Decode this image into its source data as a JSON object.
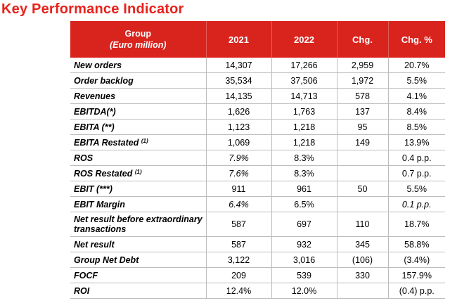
{
  "title": "Key Performance Indicator",
  "header": {
    "group": "Group",
    "unit": "(Euro million)",
    "col_2021": "2021",
    "col_2022": "2022",
    "col_chg": "Chg.",
    "col_chg_pct": "Chg. %"
  },
  "rows": [
    {
      "label": "New orders",
      "sup": "",
      "v2021": "14,307",
      "v2022": "17,266",
      "chg": "2,959",
      "pct": "20.7%"
    },
    {
      "label": "Order backlog",
      "sup": "",
      "v2021": "35,534",
      "v2022": "37,506",
      "chg": "1,972",
      "pct": "5.5%"
    },
    {
      "label": "Revenues",
      "sup": "",
      "v2021": "14,135",
      "v2022": "14,713",
      "chg": "578",
      "pct": "4.1%"
    },
    {
      "label": "EBITDA(*)",
      "sup": "",
      "v2021": "1,626",
      "v2022": "1,763",
      "chg": "137",
      "pct": "8.4%"
    },
    {
      "label": "EBITA (**)",
      "sup": "",
      "v2021": "1,123",
      "v2022": "1,218",
      "chg": "95",
      "pct": "8.5%"
    },
    {
      "label": "EBITA Restated",
      "sup": "(1)",
      "v2021": "1,069",
      "v2022": "1,218",
      "chg": "149",
      "pct": "13.9%"
    },
    {
      "label": "ROS",
      "sup": "",
      "v2021": "7.9%",
      "v2022": "8.3%",
      "chg": "",
      "pct": "0.4 p.p."
    },
    {
      "label": "ROS Restated",
      "sup": "(1)",
      "v2021": "7.6%",
      "v2022": "8.3%",
      "chg": "",
      "pct": "0.7 p.p."
    },
    {
      "label": "EBIT (***)",
      "sup": "",
      "v2021": "911",
      "v2022": "961",
      "chg": "50",
      "pct": "5.5%"
    },
    {
      "label": "EBIT Margin",
      "sup": "",
      "v2021": "6.4%",
      "v2022": "6.5%",
      "chg": "",
      "pct": "0.1 p.p."
    },
    {
      "label": "Net result before extraordinary transactions",
      "sup": "",
      "v2021": "587",
      "v2022": "697",
      "chg": "110",
      "pct": "18.7%"
    },
    {
      "label": "Net result",
      "sup": "",
      "v2021": "587",
      "v2022": "932",
      "chg": "345",
      "pct": "58.8%"
    },
    {
      "label": "Group Net Debt",
      "sup": "",
      "v2021": "3,122",
      "v2022": "3,016",
      "chg": "(106)",
      "pct": "(3.4%)"
    },
    {
      "label": "FOCF",
      "sup": "",
      "v2021": "209",
      "v2022": "539",
      "chg": "330",
      "pct": "157.9%"
    },
    {
      "label": "ROI",
      "sup": "",
      "v2021": "12.4%",
      "v2022": "12.0%",
      "chg": "",
      "pct": "(0.4) p.p."
    }
  ],
  "colors": {
    "title": "#e8221b",
    "header_bg": "#d9231d",
    "header_text": "#ffffff"
  }
}
